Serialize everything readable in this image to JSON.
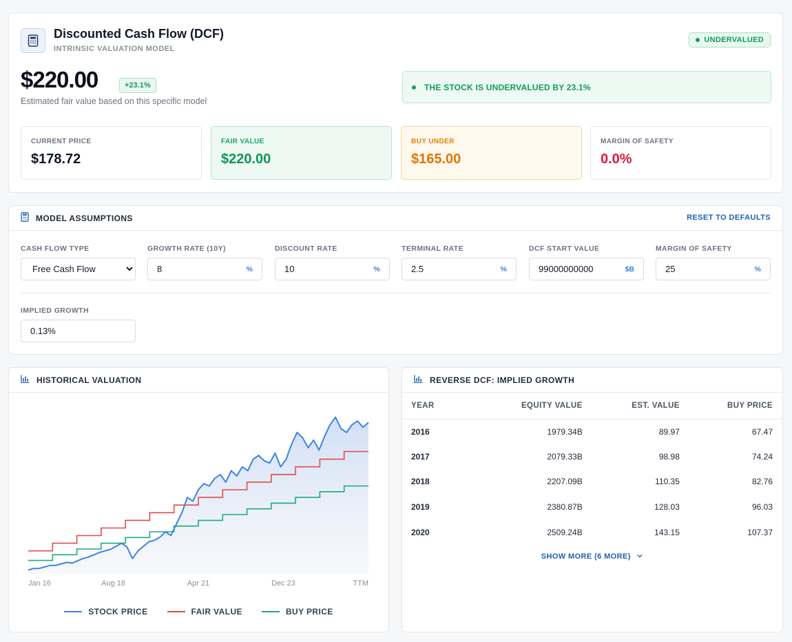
{
  "header": {
    "title": "Discounted Cash Flow (DCF)",
    "subtitle": "INTRINSIC VALUATION MODEL",
    "status_badge": "UNDERVALUED",
    "fair_value": "$220.00",
    "change": "+23.1%",
    "caption": "Estimated fair value based on this specific model",
    "verdict": "THE STOCK IS UNDERVALUED BY 23.1%",
    "icons": {
      "model": "calculator-icon",
      "status": "dot-icon"
    }
  },
  "metrics": [
    {
      "label": "CURRENT PRICE",
      "value": "$178.72"
    },
    {
      "label": "FAIR VALUE",
      "value": "$220.00"
    },
    {
      "label": "BUY UNDER",
      "value": "$165.00"
    },
    {
      "label": "MARGIN OF SAFETY",
      "value": "0.0%"
    }
  ],
  "colors": {
    "accent": "#1f5fae",
    "green": "#129b5b",
    "orange": "#e07707",
    "red": "#e0193f",
    "stock_line": "#3b82e6",
    "fair_line": "#e04b4b",
    "buy_line": "#1aaa7a"
  },
  "assumptions": {
    "title": "MODEL ASSUMPTIONS",
    "reset_label": "RESET TO DEFAULTS",
    "cash_flow_type": {
      "label": "CASH FLOW TYPE",
      "value": "Free Cash Flow"
    },
    "growth_rate": {
      "label": "GROWTH RATE (10Y)",
      "value": "8",
      "unit": "%"
    },
    "discount_rate": {
      "label": "DISCOUNT RATE",
      "value": "10",
      "unit": "%"
    },
    "terminal_rate": {
      "label": "TERMINAL RATE",
      "value": "2.5",
      "unit": "%"
    },
    "dcf_start_value": {
      "label": "DCF START VALUE",
      "value": "99000000000",
      "unit": "$B"
    },
    "margin_of_safety": {
      "label": "MARGIN OF SAFETY",
      "value": "25",
      "unit": "%"
    },
    "implied_growth": {
      "label": "IMPLIED GROWTH",
      "value": "0.13%"
    }
  },
  "historical": {
    "title": "HISTORICAL VALUATION",
    "legend": [
      "STOCK PRICE",
      "FAIR VALUE",
      "BUY PRICE"
    ]
  },
  "chart_data": {
    "type": "line",
    "title": "HISTORICAL VALUATION",
    "xlabel": "",
    "ylabel": "",
    "x_ticks": [
      "Jan 16",
      "Aug 18",
      "Apr 21",
      "Dec 23",
      "TTM"
    ],
    "grid": false,
    "legend_position": "bottom",
    "ylim": [
      20,
      240
    ],
    "series": [
      {
        "name": "STOCK PRICE",
        "style": "line with area fill",
        "values": [
          25,
          27,
          27,
          29,
          31,
          31,
          33,
          35,
          34,
          37,
          40,
          42,
          45,
          48,
          50,
          52,
          56,
          60,
          55,
          40,
          50,
          56,
          62,
          64,
          68,
          75,
          70,
          85,
          100,
          120,
          115,
          130,
          138,
          135,
          145,
          150,
          140,
          155,
          148,
          160,
          155,
          170,
          175,
          168,
          165,
          178,
          160,
          170,
          190,
          205,
          198,
          185,
          195,
          182,
          200,
          215,
          225,
          210,
          205,
          215,
          220,
          212,
          218
        ]
      },
      {
        "name": "FAIR VALUE",
        "style": "step",
        "values": [
          50,
          60,
          70,
          80,
          90,
          100,
          110,
          120,
          130,
          140,
          150,
          160,
          170,
          180
        ]
      },
      {
        "name": "BUY PRICE",
        "style": "step",
        "values": [
          37.5,
          45,
          52.5,
          60,
          67.5,
          75,
          82.5,
          90,
          97.5,
          105,
          112.5,
          120,
          127.5,
          135
        ]
      }
    ]
  },
  "reverse_dcf": {
    "title": "REVERSE DCF: IMPLIED GROWTH",
    "columns": [
      "YEAR",
      "EQUITY VALUE",
      "EST. VALUE",
      "BUY PRICE"
    ],
    "rows": [
      [
        "2016",
        "1979.34B",
        "89.97",
        "67.47"
      ],
      [
        "2017",
        "2079.33B",
        "98.98",
        "74.24"
      ],
      [
        "2018",
        "2207.09B",
        "110.35",
        "82.76"
      ],
      [
        "2019",
        "2380.87B",
        "128.03",
        "96.03"
      ],
      [
        "2020",
        "2509.24B",
        "143.15",
        "107.37"
      ]
    ],
    "show_more": "SHOW MORE (6 MORE)",
    "icons": {
      "header": "bar-chart-icon",
      "show_more": "chevron-down-icon"
    }
  }
}
